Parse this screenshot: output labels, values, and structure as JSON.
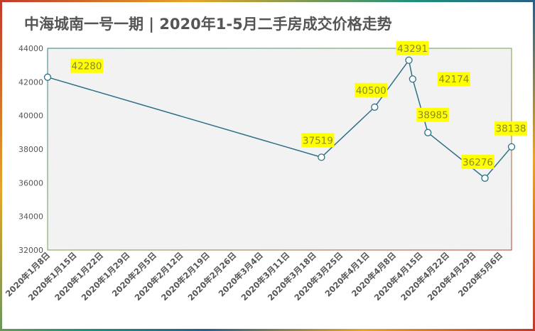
{
  "chart_data": {
    "type": "line",
    "title": "中海城南一号一期 | 2020年1-5月二手房成交价格走势",
    "xlabel": "",
    "ylabel": "",
    "ylim": [
      32000,
      44000
    ],
    "yticks": [
      32000,
      34000,
      36000,
      38000,
      40000,
      42000,
      44000
    ],
    "xtick_labels": [
      "2020年1月8日",
      "2020年1月15日",
      "2020年1月22日",
      "2020年1月29日",
      "2020年2月5日",
      "2020年2月12日",
      "2020年2月19日",
      "2020年2月26日",
      "2020年3月4日",
      "2020年3月11日",
      "2020年3月18日",
      "2020年3月25日",
      "2020年4月1日",
      "2020年4月8日",
      "2020年4月15日",
      "2020年4月22日",
      "2020年4月29日",
      "2020年5月6日"
    ],
    "xlim": [
      "2020-01-08",
      "2020-05-09"
    ],
    "grid": false,
    "series": [
      {
        "points": [
          {
            "x": "2020-01-08",
            "y": 42280
          },
          {
            "x": "2020-03-20",
            "y": 37519
          },
          {
            "x": "2020-04-03",
            "y": 40500
          },
          {
            "x": "2020-04-12",
            "y": 43291
          },
          {
            "x": "2020-04-13",
            "y": 42174
          },
          {
            "x": "2020-04-17",
            "y": 38985
          },
          {
            "x": "2020-05-02",
            "y": 36276
          },
          {
            "x": "2020-05-09",
            "y": 38138
          }
        ]
      }
    ],
    "colors": {
      "line": "#2e7184",
      "plot_background": "#f2f2f2",
      "label_background": "#ffff00",
      "label_text": "#8a8a2a",
      "axis_text": "#555555"
    }
  }
}
